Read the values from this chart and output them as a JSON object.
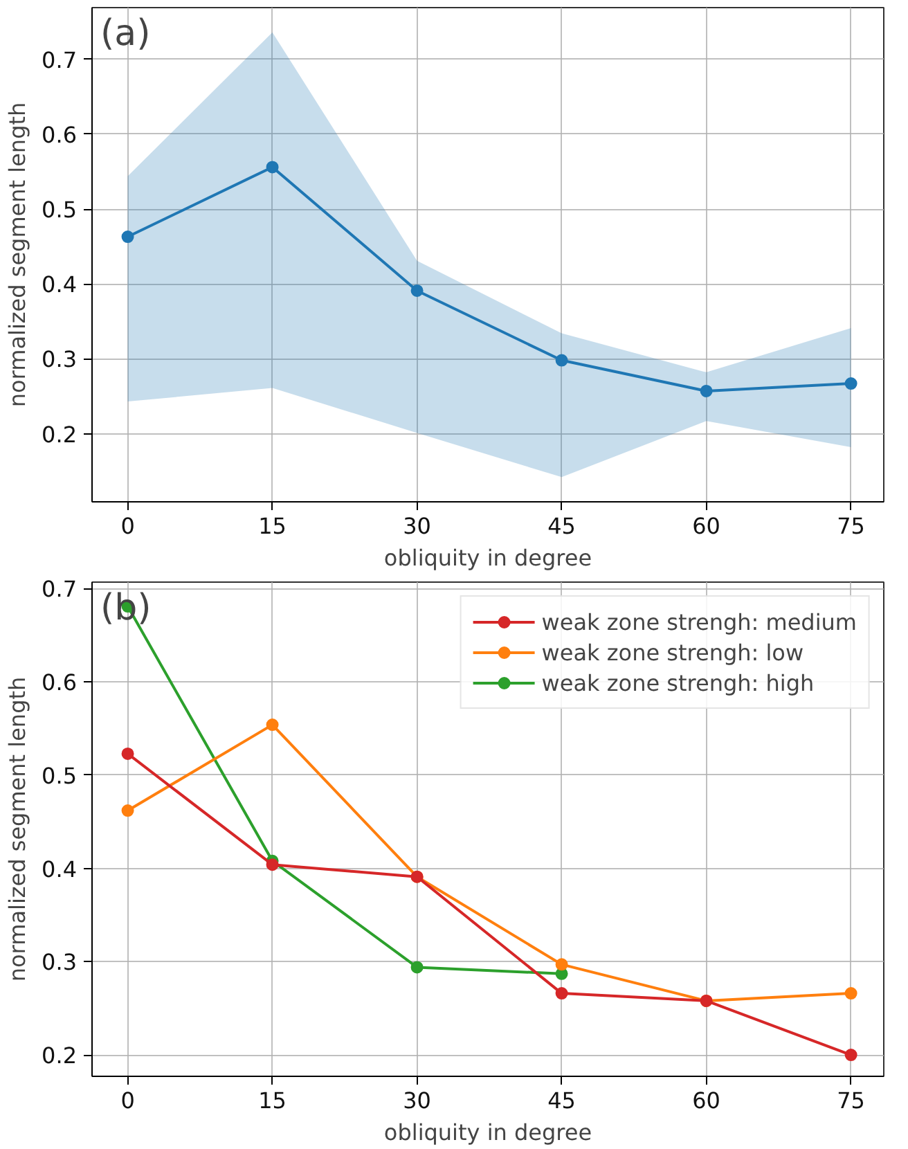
{
  "chart_data": [
    {
      "type": "line",
      "annotations": [
        "(a)"
      ],
      "xlabel": "obliquity in degree",
      "ylabel": "normalized segment length",
      "x": [
        0,
        15,
        30,
        45,
        60,
        75
      ],
      "xlim": [
        -3.7,
        78.4
      ],
      "xticks": [
        0,
        15,
        30,
        45,
        60,
        75
      ],
      "ylim": [
        0.109,
        0.769
      ],
      "yticks": [
        0.2,
        0.3,
        0.4,
        0.5,
        0.6,
        0.7
      ],
      "grid": true,
      "marker": "circle",
      "legend": false,
      "series": [
        {
          "color": "#1f77b4",
          "values": [
            0.463,
            0.556,
            0.391,
            0.298,
            0.257,
            0.267
          ],
          "lower": [
            0.243,
            0.261,
            0.201,
            0.142,
            0.217,
            0.182
          ],
          "upper": [
            0.544,
            0.736,
            0.431,
            0.334,
            0.282,
            0.341
          ]
        }
      ]
    },
    {
      "type": "line",
      "annotations": [
        "(b)"
      ],
      "xlabel": "obliquity in degree",
      "ylabel": "normalized segment length",
      "x": [
        0,
        15,
        30,
        45,
        60,
        75
      ],
      "xlim": [
        -3.7,
        78.4
      ],
      "xticks": [
        0,
        15,
        30,
        45,
        60,
        75
      ],
      "ylim": [
        0.177,
        0.707
      ],
      "yticks": [
        0.2,
        0.3,
        0.4,
        0.5,
        0.6,
        0.7
      ],
      "grid": true,
      "marker": "circle",
      "legend": "top right",
      "series": [
        {
          "name": "weak zone strengh: medium",
          "color": "#d62728",
          "values": [
            0.523,
            0.404,
            0.391,
            0.266,
            0.258,
            0.2
          ]
        },
        {
          "name": "weak zone strengh: low",
          "color": "#ff7f0e",
          "values": [
            0.462,
            0.554,
            0.391,
            0.297,
            0.258,
            0.266
          ]
        },
        {
          "name": "weak zone strengh: high",
          "color": "#2ca02c",
          "values": [
            0.681,
            0.408,
            0.294,
            0.287,
            null,
            null
          ]
        }
      ]
    }
  ]
}
